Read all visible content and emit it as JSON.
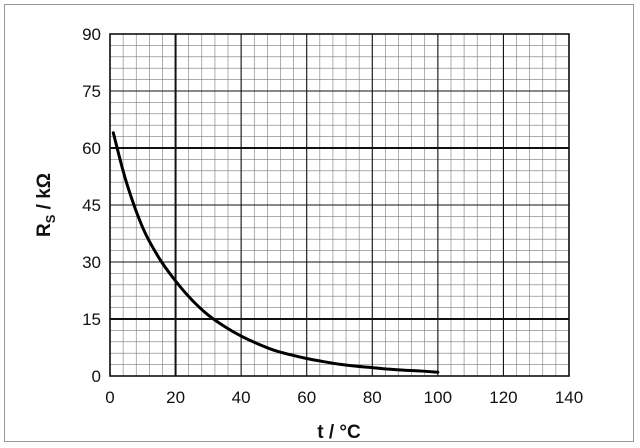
{
  "chart_data": {
    "type": "line",
    "xlabel": "t / °C",
    "ylabel_main": "R",
    "ylabel_sub": "S",
    "ylabel_unit": " / kΩ",
    "xlim": [
      0,
      140
    ],
    "ylim": [
      0,
      90
    ],
    "x_ticks": [
      0,
      20,
      40,
      60,
      80,
      100,
      120,
      140
    ],
    "y_ticks": [
      0,
      15,
      30,
      45,
      60,
      75,
      90
    ],
    "minor_x_step": 4,
    "minor_y_step": 3,
    "major_x_step": 20,
    "major_y_step": 15,
    "grid": true,
    "series": [
      {
        "values": [
          {
            "x": 1,
            "y": 64
          },
          {
            "x": 5,
            "y": 51
          },
          {
            "x": 10,
            "y": 39
          },
          {
            "x": 15,
            "y": 31
          },
          {
            "x": 20,
            "y": 25
          },
          {
            "x": 25,
            "y": 20
          },
          {
            "x": 30,
            "y": 16
          },
          {
            "x": 35,
            "y": 13
          },
          {
            "x": 40,
            "y": 10.5
          },
          {
            "x": 45,
            "y": 8.5
          },
          {
            "x": 50,
            "y": 6.8
          },
          {
            "x": 55,
            "y": 5.6
          },
          {
            "x": 60,
            "y": 4.6
          },
          {
            "x": 65,
            "y": 3.8
          },
          {
            "x": 70,
            "y": 3.1
          },
          {
            "x": 75,
            "y": 2.6
          },
          {
            "x": 80,
            "y": 2.2
          },
          {
            "x": 85,
            "y": 1.8
          },
          {
            "x": 90,
            "y": 1.5
          },
          {
            "x": 95,
            "y": 1.3
          },
          {
            "x": 100,
            "y": 1.0
          }
        ]
      }
    ]
  }
}
